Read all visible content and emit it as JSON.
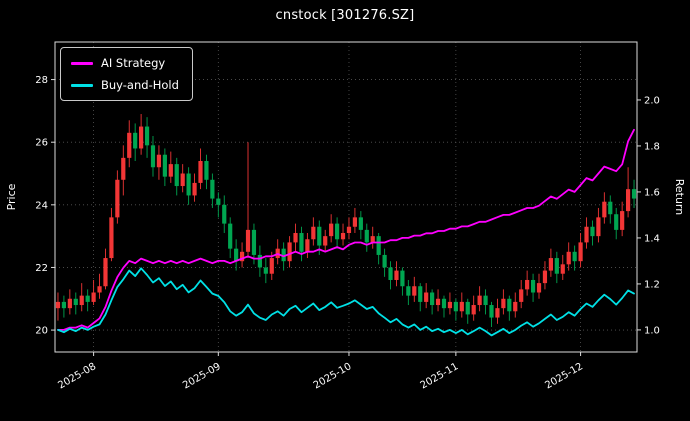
{
  "chart_data": {
    "type": "candlestick",
    "title": "cnstock [301276.SZ]",
    "ylabel_left": "Price",
    "ylabel_right": "Return",
    "x_tick_labels": [
      "2025-08",
      "2025-09",
      "2025-10",
      "2025-11",
      "2025-12"
    ],
    "x_tick_indices": [
      6,
      27,
      49,
      67,
      88
    ],
    "price_ticks": [
      20,
      22,
      24,
      26,
      28
    ],
    "return_ticks": [
      1.0,
      1.2,
      1.4,
      1.6,
      1.8,
      2.0
    ],
    "price_ylim": [
      19.3,
      29.2
    ],
    "return_ylim": [
      0.904,
      2.252
    ],
    "grid": "dotted",
    "legend_position": "upper-left",
    "colors": {
      "background": "#000000",
      "up_candle": "#f23636",
      "down_candle": "#00a651",
      "grid": "#555555",
      "frame": "#dcdcdc",
      "text": "#ffffff"
    },
    "candles_ohlc": [
      [
        20.7,
        21.2,
        20.3,
        20.9
      ],
      [
        20.9,
        21.1,
        20.4,
        20.7
      ],
      [
        20.7,
        21.3,
        20.5,
        21.0
      ],
      [
        21.0,
        21.2,
        20.5,
        20.8
      ],
      [
        20.8,
        21.5,
        20.6,
        21.1
      ],
      [
        21.1,
        21.3,
        20.6,
        20.9
      ],
      [
        20.9,
        21.6,
        20.8,
        21.2
      ],
      [
        21.2,
        21.8,
        21.0,
        21.4
      ],
      [
        21.4,
        22.6,
        21.3,
        22.3
      ],
      [
        22.3,
        23.9,
        22.2,
        23.6
      ],
      [
        23.6,
        25.1,
        23.4,
        24.8
      ],
      [
        24.8,
        25.9,
        24.3,
        25.5
      ],
      [
        25.5,
        26.7,
        25.2,
        26.3
      ],
      [
        26.3,
        26.6,
        25.4,
        25.8
      ],
      [
        25.8,
        26.9,
        25.6,
        26.5
      ],
      [
        26.5,
        26.8,
        25.5,
        25.9
      ],
      [
        25.9,
        26.2,
        24.9,
        25.2
      ],
      [
        25.2,
        25.9,
        24.8,
        25.6
      ],
      [
        25.6,
        25.8,
        24.6,
        24.9
      ],
      [
        24.9,
        25.7,
        24.7,
        25.3
      ],
      [
        25.3,
        25.5,
        24.3,
        24.6
      ],
      [
        24.6,
        25.3,
        24.4,
        25.0
      ],
      [
        25.0,
        25.2,
        24.0,
        24.3
      ],
      [
        24.3,
        25.0,
        24.1,
        24.7
      ],
      [
        24.7,
        25.8,
        24.5,
        25.4
      ],
      [
        25.4,
        25.6,
        24.5,
        24.8
      ],
      [
        24.8,
        25.0,
        23.9,
        24.2
      ],
      [
        24.2,
        24.4,
        23.6,
        24.0
      ],
      [
        24.0,
        24.3,
        23.1,
        23.4
      ],
      [
        23.4,
        23.6,
        22.3,
        22.6
      ],
      [
        22.6,
        22.9,
        21.9,
        22.2
      ],
      [
        22.2,
        22.8,
        22.0,
        22.5
      ],
      [
        22.5,
        26.0,
        22.3,
        23.2
      ],
      [
        23.2,
        23.4,
        22.1,
        22.4
      ],
      [
        22.4,
        22.7,
        21.7,
        22.0
      ],
      [
        22.0,
        22.3,
        21.5,
        21.8
      ],
      [
        21.8,
        22.5,
        21.6,
        22.3
      ],
      [
        22.3,
        22.9,
        22.1,
        22.6
      ],
      [
        22.6,
        22.8,
        21.9,
        22.2
      ],
      [
        22.2,
        23.0,
        22.0,
        22.8
      ],
      [
        22.8,
        23.4,
        22.5,
        23.1
      ],
      [
        23.1,
        23.3,
        22.2,
        22.5
      ],
      [
        22.5,
        23.1,
        22.3,
        22.9
      ],
      [
        22.9,
        23.6,
        22.7,
        23.3
      ],
      [
        23.3,
        23.5,
        22.4,
        22.7
      ],
      [
        22.7,
        23.2,
        22.5,
        23.0
      ],
      [
        23.0,
        23.7,
        22.8,
        23.4
      ],
      [
        23.4,
        23.6,
        22.6,
        22.9
      ],
      [
        22.9,
        23.4,
        22.7,
        23.1
      ],
      [
        23.1,
        23.6,
        22.9,
        23.3
      ],
      [
        23.3,
        23.9,
        23.1,
        23.6
      ],
      [
        23.6,
        23.8,
        22.9,
        23.2
      ],
      [
        23.2,
        23.4,
        22.5,
        22.8
      ],
      [
        22.8,
        23.3,
        22.6,
        23.0
      ],
      [
        23.0,
        23.1,
        22.1,
        22.4
      ],
      [
        22.4,
        22.6,
        21.7,
        22.0
      ],
      [
        22.0,
        22.2,
        21.3,
        21.6
      ],
      [
        21.6,
        22.2,
        21.4,
        21.9
      ],
      [
        21.9,
        22.0,
        21.1,
        21.4
      ],
      [
        21.4,
        21.6,
        20.8,
        21.1
      ],
      [
        21.1,
        21.7,
        20.9,
        21.4
      ],
      [
        21.4,
        21.5,
        20.6,
        20.9
      ],
      [
        20.9,
        21.5,
        20.7,
        21.2
      ],
      [
        21.2,
        21.3,
        20.5,
        20.8
      ],
      [
        20.8,
        21.3,
        20.6,
        21.0
      ],
      [
        21.0,
        21.1,
        20.4,
        20.7
      ],
      [
        20.7,
        21.2,
        20.5,
        20.9
      ],
      [
        20.9,
        21.0,
        20.3,
        20.6
      ],
      [
        20.6,
        21.2,
        20.4,
        20.9
      ],
      [
        20.9,
        21.0,
        20.2,
        20.5
      ],
      [
        20.5,
        21.1,
        20.3,
        20.8
      ],
      [
        20.8,
        21.4,
        20.6,
        21.1
      ],
      [
        21.1,
        21.3,
        20.5,
        20.8
      ],
      [
        20.8,
        20.9,
        20.1,
        20.4
      ],
      [
        20.4,
        21.0,
        20.2,
        20.7
      ],
      [
        20.7,
        21.3,
        20.5,
        21.0
      ],
      [
        21.0,
        21.1,
        20.3,
        20.6
      ],
      [
        20.6,
        21.2,
        20.4,
        20.9
      ],
      [
        20.9,
        21.6,
        20.7,
        21.3
      ],
      [
        21.3,
        21.9,
        21.1,
        21.6
      ],
      [
        21.6,
        21.8,
        20.9,
        21.2
      ],
      [
        21.2,
        21.8,
        21.0,
        21.5
      ],
      [
        21.5,
        22.2,
        21.3,
        21.9
      ],
      [
        21.9,
        22.6,
        21.7,
        22.3
      ],
      [
        22.3,
        22.5,
        21.5,
        21.8
      ],
      [
        21.8,
        22.4,
        21.6,
        22.1
      ],
      [
        22.1,
        22.8,
        21.9,
        22.5
      ],
      [
        22.5,
        22.7,
        21.9,
        22.2
      ],
      [
        22.2,
        23.1,
        22.0,
        22.8
      ],
      [
        22.8,
        23.6,
        22.6,
        23.3
      ],
      [
        23.3,
        23.5,
        22.7,
        23.0
      ],
      [
        23.0,
        23.9,
        22.8,
        23.6
      ],
      [
        23.6,
        24.4,
        23.4,
        24.1
      ],
      [
        24.1,
        24.3,
        23.4,
        23.7
      ],
      [
        23.7,
        23.9,
        22.9,
        23.2
      ],
      [
        23.2,
        24.1,
        23.0,
        23.8
      ],
      [
        23.8,
        25.2,
        23.6,
        24.5
      ],
      [
        24.5,
        24.8,
        23.9,
        24.2
      ]
    ],
    "series": [
      {
        "name": "AI Strategy",
        "color": "#ff00ff",
        "axis": "return",
        "values": [
          1.0,
          1.0,
          1.01,
          1.01,
          1.02,
          1.01,
          1.03,
          1.05,
          1.1,
          1.17,
          1.23,
          1.27,
          1.3,
          1.29,
          1.31,
          1.3,
          1.29,
          1.3,
          1.29,
          1.3,
          1.29,
          1.3,
          1.29,
          1.3,
          1.31,
          1.3,
          1.29,
          1.3,
          1.3,
          1.29,
          1.3,
          1.31,
          1.32,
          1.31,
          1.31,
          1.32,
          1.32,
          1.33,
          1.32,
          1.33,
          1.34,
          1.33,
          1.34,
          1.34,
          1.35,
          1.34,
          1.35,
          1.36,
          1.35,
          1.37,
          1.38,
          1.38,
          1.37,
          1.38,
          1.38,
          1.38,
          1.39,
          1.39,
          1.4,
          1.4,
          1.41,
          1.41,
          1.42,
          1.42,
          1.43,
          1.43,
          1.44,
          1.44,
          1.45,
          1.45,
          1.46,
          1.47,
          1.47,
          1.48,
          1.49,
          1.5,
          1.5,
          1.51,
          1.52,
          1.53,
          1.53,
          1.54,
          1.56,
          1.58,
          1.57,
          1.59,
          1.61,
          1.6,
          1.63,
          1.66,
          1.65,
          1.68,
          1.71,
          1.7,
          1.69,
          1.72,
          1.82,
          1.87
        ]
      },
      {
        "name": "Buy-and-Hold",
        "color": "#00e1e6",
        "axis": "return",
        "values": [
          1.0,
          0.99,
          1.005,
          0.995,
          1.01,
          1.0,
          1.014,
          1.024,
          1.067,
          1.129,
          1.187,
          1.22,
          1.258,
          1.234,
          1.268,
          1.239,
          1.206,
          1.225,
          1.191,
          1.211,
          1.177,
          1.196,
          1.163,
          1.182,
          1.215,
          1.187,
          1.158,
          1.148,
          1.12,
          1.081,
          1.062,
          1.077,
          1.11,
          1.072,
          1.053,
          1.043,
          1.067,
          1.081,
          1.062,
          1.091,
          1.105,
          1.077,
          1.096,
          1.115,
          1.086,
          1.1,
          1.12,
          1.096,
          1.105,
          1.115,
          1.129,
          1.11,
          1.091,
          1.1,
          1.072,
          1.053,
          1.033,
          1.048,
          1.024,
          1.01,
          1.024,
          1.0,
          1.014,
          0.995,
          1.005,
          0.99,
          1.0,
          0.986,
          1.0,
          0.981,
          0.995,
          1.01,
          0.995,
          0.976,
          0.99,
          1.005,
          0.986,
          1.0,
          1.019,
          1.033,
          1.014,
          1.029,
          1.048,
          1.067,
          1.043,
          1.057,
          1.077,
          1.062,
          1.091,
          1.115,
          1.1,
          1.129,
          1.153,
          1.134,
          1.11,
          1.139,
          1.172,
          1.158
        ]
      }
    ]
  }
}
